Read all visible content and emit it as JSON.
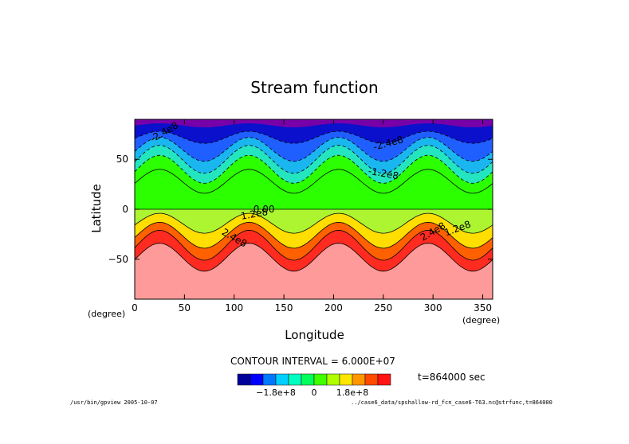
{
  "title": "Stream function",
  "chart_data": {
    "type": "contour",
    "title": "Stream function",
    "xlabel": "Longitude",
    "ylabel": "Latitude",
    "x_unit": "(degree)",
    "y_unit": "(degree)",
    "xlim": [
      0,
      360
    ],
    "ylim": [
      -90,
      90
    ],
    "x_ticks": [
      0,
      50,
      100,
      150,
      200,
      250,
      300,
      350
    ],
    "y_ticks": [
      -50,
      0,
      50
    ],
    "grid": false,
    "contour_levels": [
      -240000000.0,
      -180000000.0,
      -120000000.0,
      -60000000.0,
      0,
      60000000.0,
      120000000.0,
      180000000.0,
      240000000.0
    ],
    "contour_labels": [
      "-2.4e8",
      "-1.2e8",
      "0.00",
      "1.2e8",
      "2.4e8"
    ],
    "wave_number": 4,
    "colorbar": {
      "colors": [
        "#00009b",
        "#0000ff",
        "#0079ff",
        "#00cfff",
        "#00ffc0",
        "#00ff5a",
        "#3fff00",
        "#b0ff00",
        "#ffe600",
        "#ff9600",
        "#ff4a00",
        "#ff1414"
      ],
      "band_colors_plot": [
        "#7700a8",
        "#0a10cc",
        "#1f5fff",
        "#19b6f0",
        "#23e6c0",
        "#2bff00",
        "#2bff00",
        "#adf531",
        "#ffde00",
        "#ff6100",
        "#ff2b20",
        "#ff9a9a"
      ],
      "tick_labels": [
        "−1.8e+8",
        "0",
        "1.8e+8"
      ]
    }
  },
  "contour_interval": "CONTOUR INTERVAL = 6.000E+07",
  "time_label": "t=864000 sec",
  "footer_left": "/usr/bin/gpview  2005-10-07",
  "footer_right": "../case6_data/spshallow-rd_fcn_case6-T63.nc@strfunc,t=864000"
}
